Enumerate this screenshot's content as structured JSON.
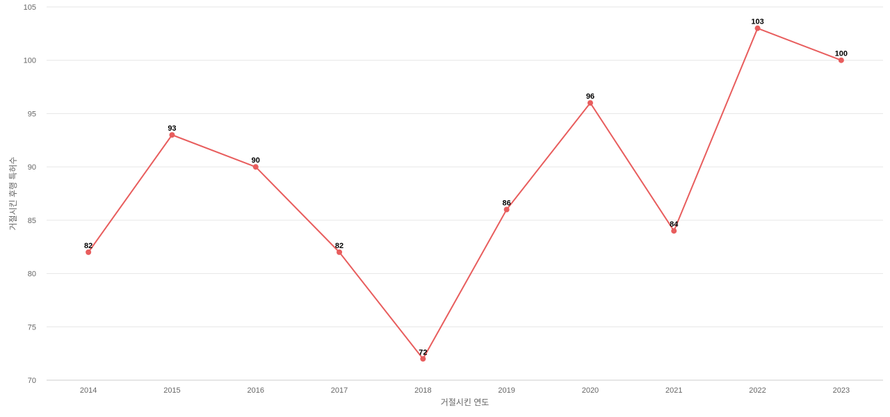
{
  "chart_data": {
    "type": "line",
    "title": "",
    "xlabel": "거절시킨 연도",
    "ylabel": "거절시킨 후행 특허수",
    "categories": [
      "2014",
      "2015",
      "2016",
      "2017",
      "2018",
      "2019",
      "2020",
      "2021",
      "2022",
      "2023"
    ],
    "series": [
      {
        "values": [
          82,
          93,
          90,
          82,
          72,
          86,
          96,
          84,
          103,
          100
        ]
      }
    ],
    "ylim": [
      70,
      105
    ],
    "yticks": [
      70,
      75,
      80,
      85,
      90,
      95,
      100,
      105
    ],
    "grid": true,
    "legend": "none",
    "colors": {
      "line": "#e85d5d",
      "grid": "#e6e6e6"
    }
  }
}
